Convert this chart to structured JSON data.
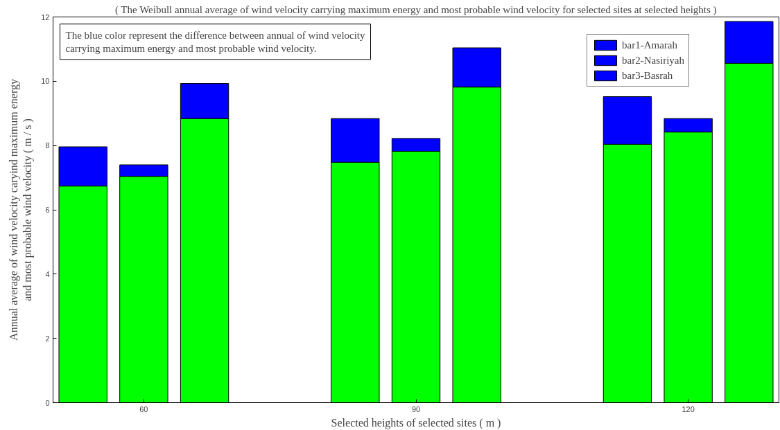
{
  "chart_data": {
    "type": "bar",
    "title": "( The Weibull annual average of wind velocity carrying maximum energy and most probable wind velocity for selected sites at selected heights )",
    "xlabel": "Selected heights of selected sites ( m )",
    "ylabel": "Annual average of wind velocity caryind maximum energy and most probable wind velocity ( m / s )",
    "annotations": [
      "The blue color represent the difference between annual of wind velocity carrying maximum energy and most probable wind velocity."
    ],
    "x": [
      53.3,
      60,
      66.7,
      83.3,
      90,
      96.7,
      113.3,
      120,
      126.7
    ],
    "xlim": [
      50,
      130
    ],
    "xticks": [
      60,
      90,
      120
    ],
    "ylim": [
      0,
      12
    ],
    "yticks": [
      0,
      2,
      4,
      6,
      8,
      10,
      12
    ],
    "stacked": true,
    "legend": "top right",
    "grid": false,
    "series": [
      {
        "color": "#00ff00",
        "values": [
          6.74,
          7.04,
          8.84,
          7.48,
          7.82,
          9.82,
          8.04,
          8.42,
          10.56
        ]
      },
      {
        "name": "bar1-Amarah",
        "color": "#0000ff",
        "values": [
          1.22,
          null,
          null,
          1.36,
          null,
          null,
          1.48,
          null,
          null
        ]
      },
      {
        "name": "bar2-Nasiriyah",
        "color": "#0000ff",
        "values": [
          null,
          0.36,
          null,
          null,
          0.4,
          null,
          null,
          0.42,
          null
        ]
      },
      {
        "name": "bar3-Basrah",
        "color": "#0000ff",
        "values": [
          null,
          null,
          1.09,
          null,
          null,
          1.22,
          null,
          null,
          1.3
        ]
      }
    ]
  }
}
